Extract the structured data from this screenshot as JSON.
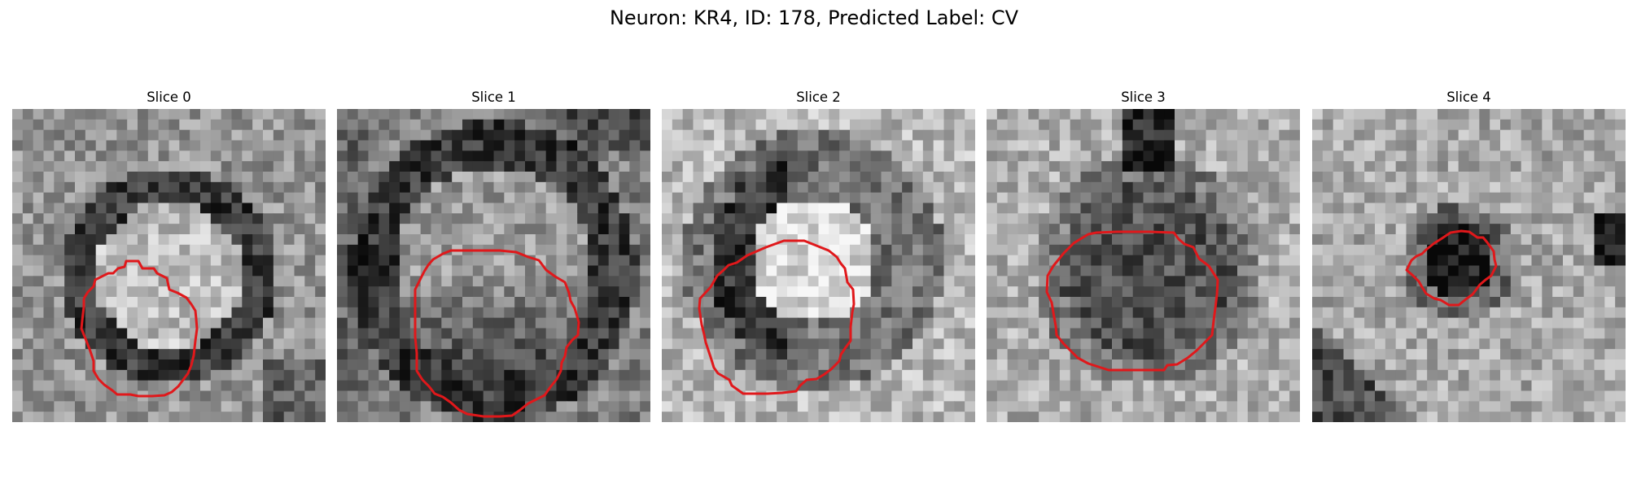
{
  "figure": {
    "title": "Neuron: KR4, ID: 178, Predicted Label: CV"
  },
  "panels": [
    {
      "title": "Slice 0",
      "pattern": "bright-center-dark-ring"
    },
    {
      "title": "Slice 1",
      "pattern": "mid-center-dark-ring"
    },
    {
      "title": "Slice 2",
      "pattern": "bright-center-dark-left-ring"
    },
    {
      "title": "Slice 3",
      "pattern": "dark-center"
    },
    {
      "title": "Slice 4",
      "pattern": "small-dark-spot"
    }
  ],
  "colors": {
    "roi_outline": "#e0181b",
    "background": "#ffffff"
  }
}
